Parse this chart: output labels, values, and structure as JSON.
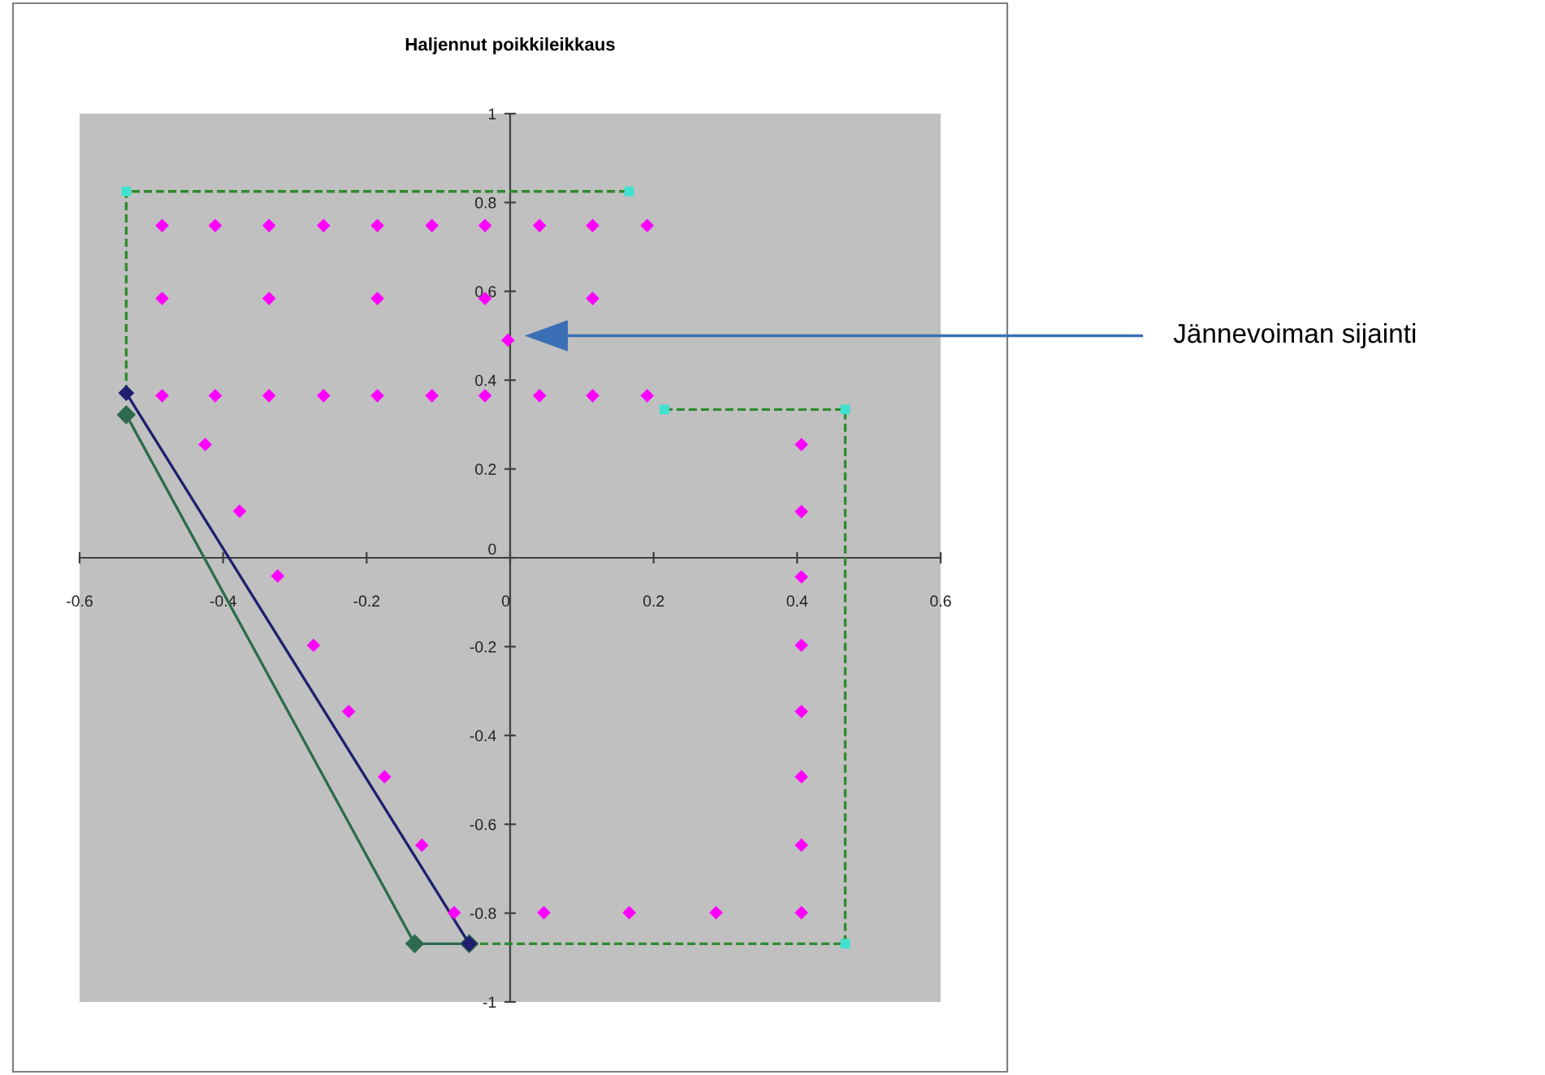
{
  "chart_data": {
    "type": "scatter",
    "title": "Haljennut poikkileikkaus",
    "xlim": [
      -0.6,
      0.6
    ],
    "ylim": [
      -1,
      1
    ],
    "xticks": [
      -0.6,
      -0.4,
      -0.2,
      0,
      0.2,
      0.4,
      0.6
    ],
    "yticks": [
      -1,
      -0.8,
      -0.6,
      -0.4,
      -0.2,
      0,
      0.2,
      0.4,
      0.6,
      0.8,
      1
    ],
    "grid": false,
    "annotations": [
      "Jännevoiman sijainti"
    ],
    "series": [
      {
        "type": "line",
        "color": "#2e8b2e",
        "line_style": "dashed",
        "marker": "none",
        "x": [
          -0.535,
          -0.535,
          0.166,
          null,
          0.215,
          0.467,
          0.467,
          -0.057
        ],
        "values": [
          0.371,
          0.825,
          0.825,
          null,
          0.334,
          0.334,
          -0.869,
          -0.869
        ]
      },
      {
        "type": "scatter",
        "color": "#40e0d0",
        "marker": "square",
        "x": [
          -0.535,
          0.166,
          0.215,
          0.467,
          0.467
        ],
        "values": [
          0.825,
          0.825,
          0.334,
          0.334,
          -0.869
        ]
      },
      {
        "type": "line",
        "color": "#2e6b4e",
        "line_style": "solid",
        "marker": "diamond",
        "x": [
          -0.535,
          -0.133,
          -0.057
        ],
        "values": [
          0.322,
          -0.869,
          -0.869
        ]
      },
      {
        "type": "line",
        "color": "#1f1f6e",
        "line_style": "solid",
        "marker": "diamond",
        "x": [
          -0.535,
          -0.057
        ],
        "values": [
          0.371,
          -0.869
        ]
      },
      {
        "type": "scatter",
        "color": "#ff00ff",
        "marker": "diamond",
        "x": [
          -0.485,
          -0.411,
          -0.336,
          -0.26,
          -0.185,
          -0.109,
          -0.035,
          0.041,
          0.115,
          0.191,
          -0.485,
          -0.336,
          -0.185,
          -0.035,
          0.115,
          -0.485,
          -0.411,
          -0.336,
          -0.26,
          -0.185,
          -0.109,
          -0.035,
          0.041,
          0.115,
          0.191,
          -0.003,
          -0.425,
          -0.377,
          -0.324,
          -0.274,
          -0.225,
          -0.175,
          -0.123,
          -0.078,
          0.047,
          0.166,
          0.287,
          0.406,
          0.406,
          0.406,
          0.406,
          0.406,
          0.406,
          0.406,
          0.406
        ],
        "values": [
          0.748,
          0.748,
          0.748,
          0.748,
          0.748,
          0.748,
          0.748,
          0.748,
          0.748,
          0.748,
          0.584,
          0.584,
          0.584,
          0.584,
          0.584,
          0.365,
          0.365,
          0.365,
          0.365,
          0.365,
          0.365,
          0.365,
          0.365,
          0.365,
          0.365,
          0.49,
          0.255,
          0.105,
          -0.041,
          -0.197,
          -0.346,
          -0.493,
          -0.647,
          -0.799,
          -0.799,
          -0.799,
          -0.799,
          -0.799,
          -0.647,
          -0.493,
          -0.346,
          -0.197,
          -0.043,
          0.104,
          0.255
        ]
      }
    ]
  }
}
